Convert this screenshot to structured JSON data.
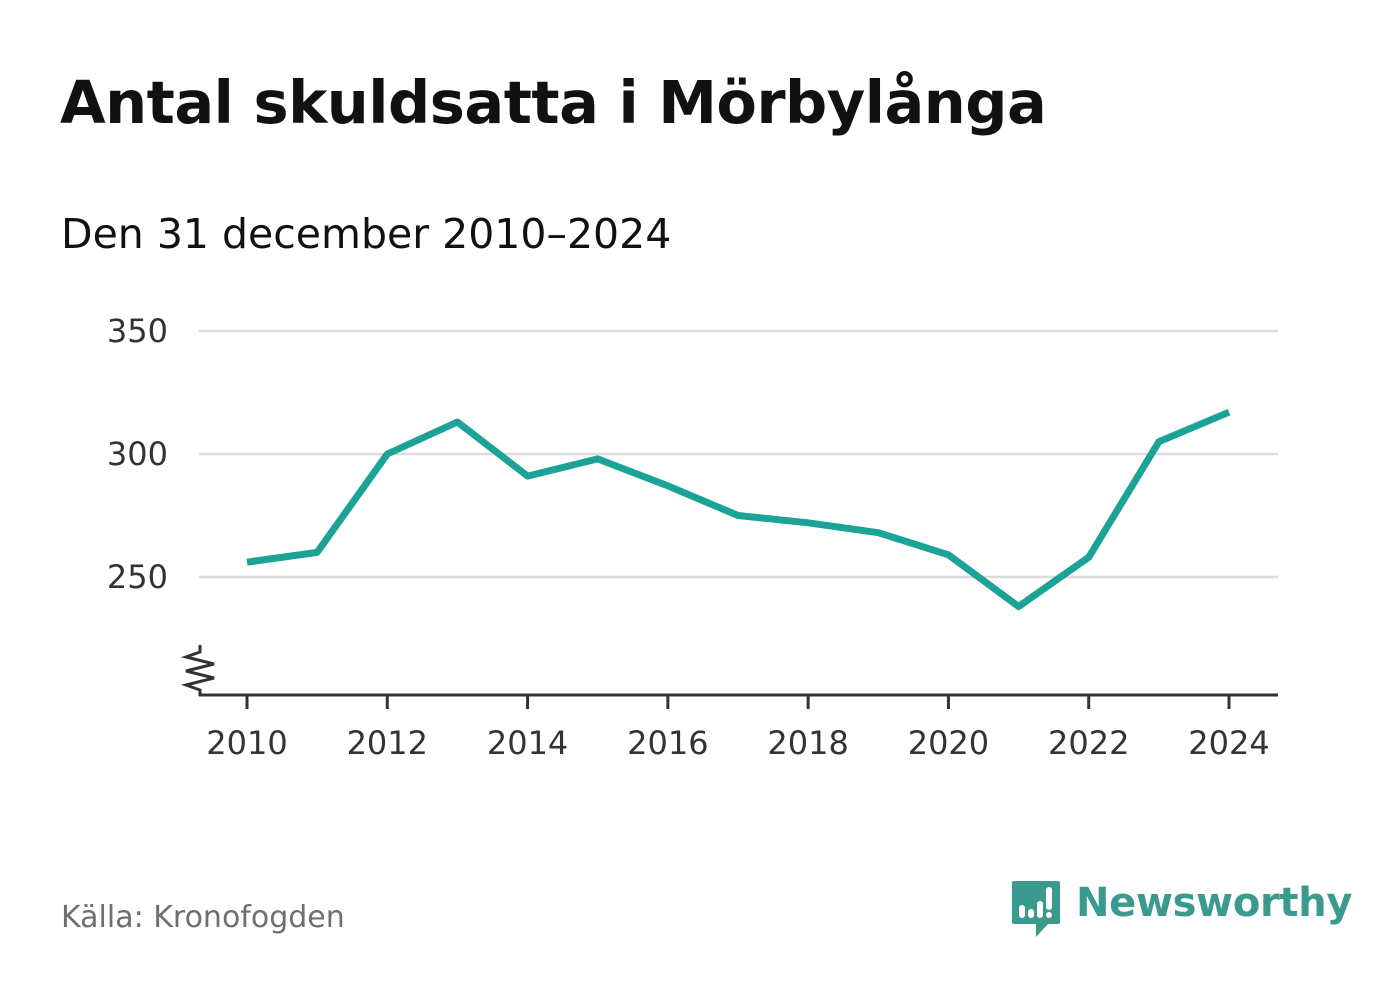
{
  "header": {
    "title": "Antal skuldsatta i Mörbylånga",
    "subtitle": "Den 31 december 2010–2024"
  },
  "chart_data": {
    "type": "line",
    "title": "Antal skuldsatta i Mörbylånga",
    "subtitle": "Den 31 december 2010–2024",
    "x": [
      2010,
      2011,
      2012,
      2013,
      2014,
      2015,
      2016,
      2017,
      2018,
      2019,
      2020,
      2021,
      2022,
      2023,
      2024
    ],
    "series": [
      {
        "values": [
          256,
          260,
          300,
          313,
          291,
          298,
          287,
          275,
          272,
          268,
          259,
          238,
          258,
          305,
          317
        ]
      }
    ],
    "x_ticks": [
      "2010",
      "2012",
      "2014",
      "2016",
      "2018",
      "2020",
      "2022",
      "2024"
    ],
    "y_ticks": [
      "250",
      "300",
      "350"
    ],
    "ylim": [
      202,
      350
    ],
    "y_axis_break": true,
    "grid": "horizontal",
    "line_color": "#1aa396",
    "xlabel": "",
    "ylabel": ""
  },
  "footer": {
    "source": "Källa: Kronofogden",
    "brand": "Newsworthy",
    "brand_icon": "newsworthy-logo-icon",
    "brand_color": "#3a9a8e"
  }
}
